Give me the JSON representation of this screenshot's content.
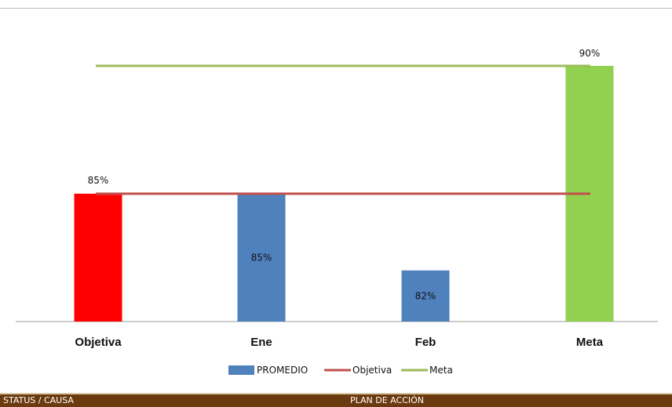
{
  "chart_data": {
    "type": "bar",
    "categories": [
      "Objetiva",
      "Ene",
      "Feb",
      "Meta"
    ],
    "ylim": [
      80,
      90
    ],
    "bars": [
      {
        "category": "Objetiva",
        "value": 85,
        "label": "85%",
        "color": "#ff0000"
      },
      {
        "category": "Ene",
        "value": 85,
        "label": "85%",
        "color": "#4f81bd"
      },
      {
        "category": "Feb",
        "value": 82,
        "label": "82%",
        "color": "#4f81bd"
      },
      {
        "category": "Meta",
        "value": 90,
        "label": "90%",
        "color": "#92d050"
      }
    ],
    "series": [
      {
        "name": "PROMEDIO",
        "type": "bar",
        "color": "#4f81bd",
        "values": [
          null,
          85,
          82,
          null
        ]
      },
      {
        "name": "Objetiva",
        "type": "line",
        "color": "#c0504d",
        "value": 85
      },
      {
        "name": "Meta",
        "type": "line",
        "color": "#9bbb59",
        "value": 90
      }
    ],
    "legend": [
      "PROMEDIO",
      "Objetiva",
      "Meta"
    ],
    "legend_position": "bottom",
    "grid": false
  },
  "footer": {
    "left": "STATUS / CAUSA",
    "center": "PLAN DE ACCIÓN"
  }
}
